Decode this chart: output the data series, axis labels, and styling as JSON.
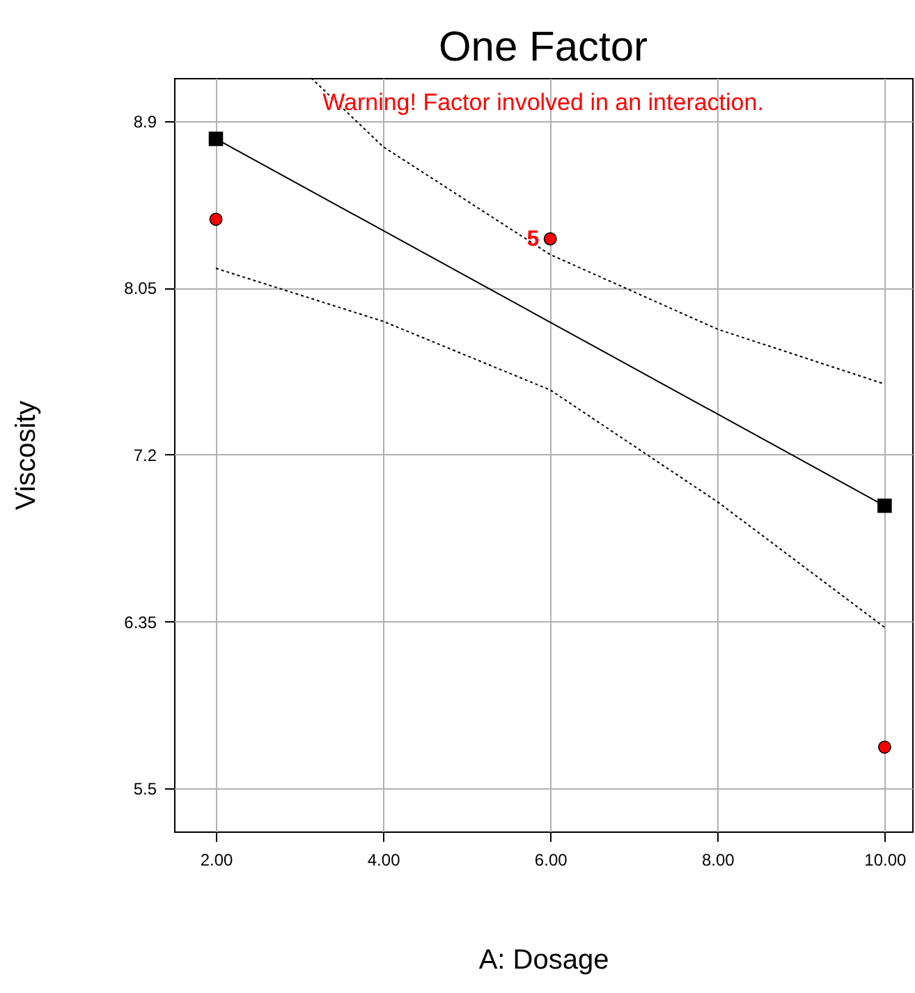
{
  "chart_data": {
    "type": "scatter",
    "title": "One Factor",
    "xlabel": "A: Dosage",
    "ylabel": "Viscosity",
    "xlim": [
      1.5,
      10.33
    ],
    "ylim": [
      5.28,
      9.12
    ],
    "xticks": [
      {
        "value": 2,
        "label": "2.00"
      },
      {
        "value": 4,
        "label": "4.00"
      },
      {
        "value": 6,
        "label": "6.00"
      },
      {
        "value": 8,
        "label": "8.00"
      },
      {
        "value": 10,
        "label": "10.00"
      }
    ],
    "yticks": [
      5.5,
      6.35,
      7.2,
      8.05,
      8.9
    ],
    "grid": true,
    "series": [
      {
        "type": "line",
        "color": "#000000",
        "x": [
          2,
          10
        ],
        "values": [
          8.81,
          6.94
        ],
        "marker": "square",
        "line_style": "solid"
      },
      {
        "type": "line",
        "color": "#000000",
        "x": [
          3.14,
          4,
          6,
          8,
          10
        ],
        "values": [
          9.12,
          8.77,
          8.22,
          7.84,
          7.56
        ],
        "marker": "none",
        "line_style": "dotted"
      },
      {
        "type": "line",
        "color": "#000000",
        "x": [
          2,
          4,
          6,
          8,
          10
        ],
        "values": [
          8.15,
          7.88,
          7.53,
          6.96,
          6.32
        ],
        "marker": "none",
        "line_style": "dotted"
      },
      {
        "color": "#ff0000",
        "x": [
          2,
          6,
          10
        ],
        "values": [
          8.4,
          8.3,
          5.71
        ],
        "marker": "circle"
      }
    ],
    "annotations": [
      "Warning! Factor involved in an interaction.",
      {
        "text": "5",
        "x": 6,
        "y": 8.3
      }
    ]
  }
}
